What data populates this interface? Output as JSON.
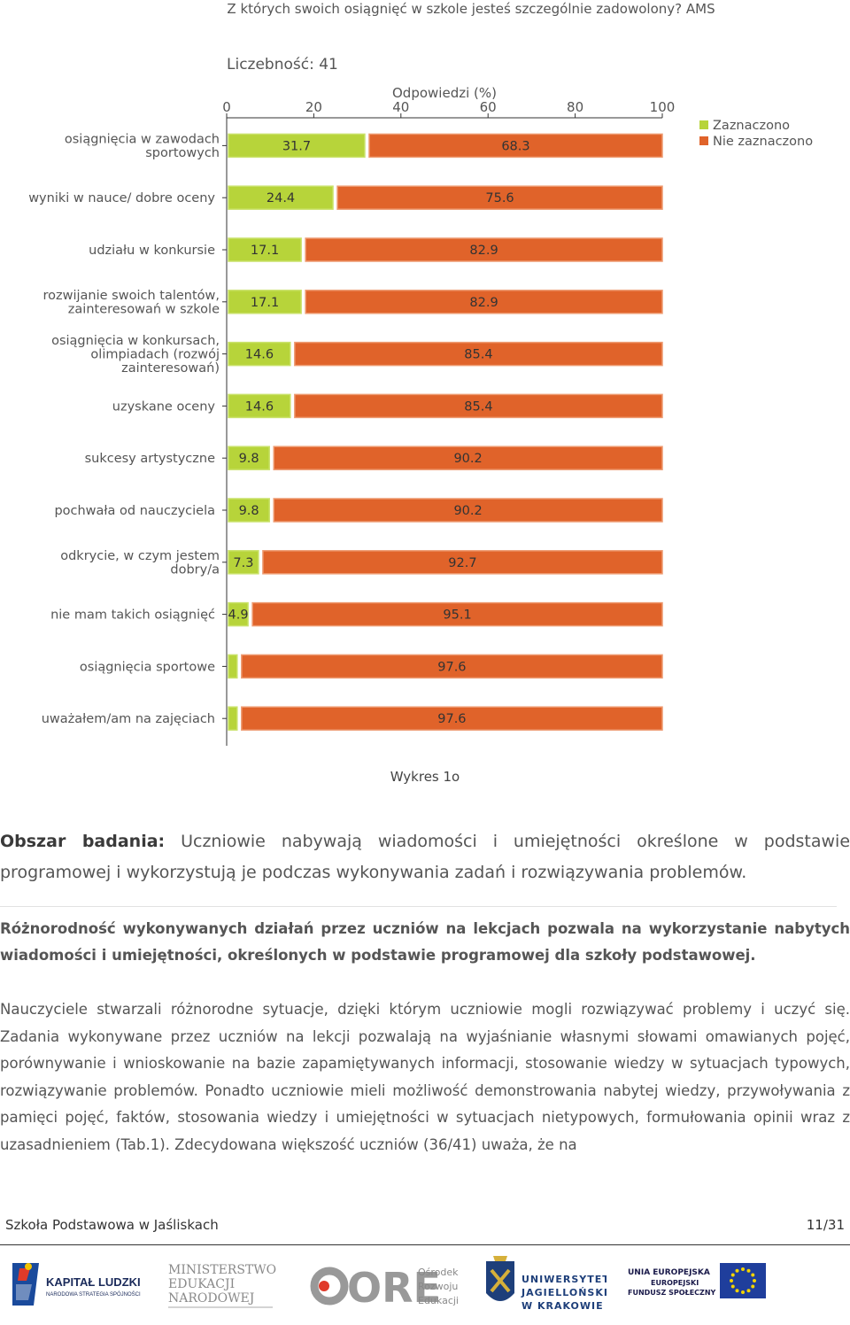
{
  "chart_data": {
    "type": "bar",
    "stacked": true,
    "orientation": "horizontal",
    "title": "Z których swoich osiągnięć w szkole jesteś szczególnie zadowolony? AMS",
    "subtitle": "Liczebność: 41",
    "xlabel": "Odpowiedzi (%)",
    "xlim": [
      0,
      100
    ],
    "xticks": [
      "0",
      "20",
      "40",
      "60",
      "80",
      "100"
    ],
    "legend_position": "top-right",
    "categories": [
      [
        "osiągnięcia w zawodach",
        "sportowych"
      ],
      [
        "wyniki w nauce/ dobre oceny"
      ],
      [
        "udziału w konkursie"
      ],
      [
        "rozwijanie swoich talentów,",
        "zainteresowań w szkole"
      ],
      [
        "osiągnięcia w konkursach,",
        "olimpiadach (rozwój",
        "zainteresowań)"
      ],
      [
        "uzyskane oceny"
      ],
      [
        "sukcesy artystyczne"
      ],
      [
        "pochwała od nauczyciela"
      ],
      [
        "odkrycie, w czym jestem",
        "dobry/a"
      ],
      [
        "nie mam takich osiągnięć"
      ],
      [
        "osiągnięcia sportowe"
      ],
      [
        "uważałem/am na zajęciach"
      ]
    ],
    "series": [
      {
        "name": "Zaznaczono",
        "color": "#b7d43a",
        "values": [
          31.7,
          24.4,
          17.1,
          17.1,
          14.6,
          14.6,
          9.8,
          9.8,
          7.3,
          4.9,
          2.4,
          2.4
        ],
        "labels": [
          "31.7",
          "24.4",
          "17.1",
          "17.1",
          "14.6",
          "14.6",
          "9.8",
          "9.8",
          "7.3",
          "4.9",
          "",
          ""
        ]
      },
      {
        "name": "Nie zaznaczono",
        "color": "#e0632a",
        "values": [
          68.3,
          75.6,
          82.9,
          82.9,
          85.4,
          85.4,
          90.2,
          90.2,
          92.7,
          95.1,
          97.6,
          97.6
        ],
        "labels": [
          "68.3",
          "75.6",
          "82.9",
          "82.9",
          "85.4",
          "85.4",
          "90.2",
          "90.2",
          "92.7",
          "95.1",
          "97.6",
          "97.6"
        ]
      }
    ]
  },
  "caption": "Wykres 1o",
  "area": {
    "label": "Obszar badania:",
    "text": "Uczniowie nabywają wiadomości i umiejętności określone w podstawie programowej i wykorzystują je podczas wykonywania zadań i rozwiązywania problemów."
  },
  "bold_text": "Różnorodność wykonywanych działań przez uczniów na lekcjach pozwala na wykorzystanie nabytych wiadomości i umiejętności, określonych w podstawie programowej dla szkoły podstawowej.",
  "body_text": "Nauczyciele stwarzali różnorodne sytuacje, dzięki którym uczniowie mogli rozwiązywać problemy i uczyć się. Zadania wykonywane przez uczniów na lekcji pozwalają na wyjaśnianie własnymi słowami omawianych pojęć, porównywanie i wnioskowanie na bazie zapamiętywanych informacji, stosowanie wiedzy w sytuacjach typowych, rozwiązywanie problemów. Ponadto uczniowie mieli możliwość demonstrowania nabytej wiedzy, przywoływania z pamięci pojęć, faktów, stosowania wiedzy i umiejętności w sytuacjach nietypowych, formułowania opinii wraz z uzasadnieniem (Tab.1). Zdecydowana większość uczniów (36/41) uważa, że na",
  "footer": {
    "school": "Szkoła Podstawowa w Jaśliskach",
    "page": "11/31"
  },
  "logos": {
    "kapital": {
      "line1": "KAPITAŁ LUDZKI",
      "line2": "NARODOWA STRATEGIA SPÓJNOŚCI"
    },
    "men": {
      "line1": "MINISTERSTWO",
      "line2": "EDUKACJI",
      "line3": "NARODOWEJ"
    },
    "ore": {
      "big": "ORE",
      "line1": "Ośrodek",
      "line2": "Rozwoju",
      "line3": "Edukacji"
    },
    "uj": {
      "line1": "UNIWERSYTET",
      "line2": "JAGIELLOŃSKI",
      "line3": "W KRAKOWIE"
    },
    "ue": {
      "line1": "UNIA EUROPEJSKA",
      "line2": "EUROPEJSKI",
      "line3": "FUNDUSZ SPOŁECZNY"
    }
  }
}
